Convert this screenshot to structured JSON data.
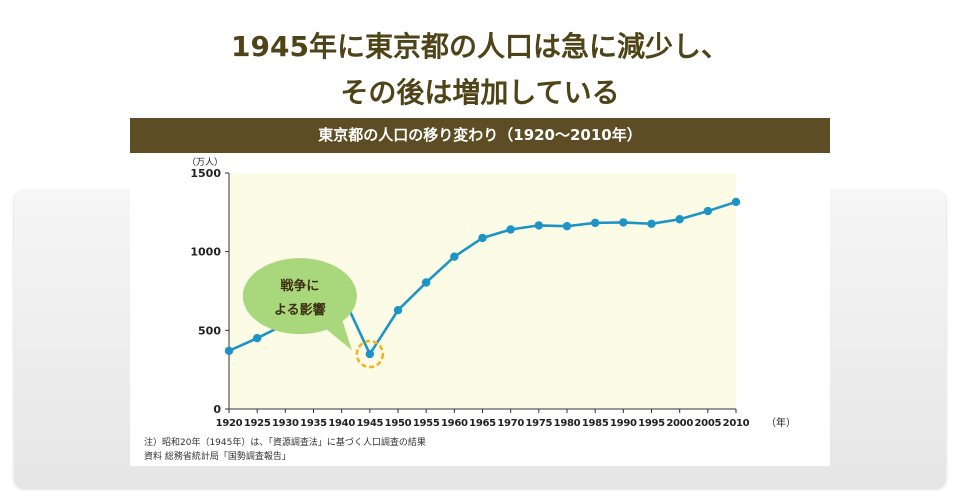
{
  "headline": {
    "line1": "1945年に東京都の人口は急に減少し、",
    "line2": "その後は増加している"
  },
  "chart_data": {
    "type": "line",
    "title": "東京都の人口の移り変わり（1920〜2010年）",
    "ylabel": "（万人）",
    "xlabel": "（年）",
    "x": [
      1920,
      1925,
      1930,
      1935,
      1940,
      1945,
      1950,
      1955,
      1960,
      1965,
      1970,
      1975,
      1980,
      1985,
      1990,
      1995,
      2000,
      2005,
      2010
    ],
    "x_tick_labels": [
      "1920",
      "1925",
      "1930",
      "1935",
      "1940",
      "1945",
      "1950",
      "1955",
      "1960",
      "1965",
      "1970",
      "1975",
      "1980",
      "1985",
      "1990",
      "1995",
      "2000",
      "2005",
      "2010"
    ],
    "y_ticks": [
      0,
      500,
      1000,
      1500
    ],
    "y_tick_labels": [
      "0",
      "500",
      "1000",
      "1500"
    ],
    "ylim": [
      0,
      1500
    ],
    "xlim": [
      1920,
      2010
    ],
    "series": [
      {
        "values": [
          370,
          450,
          540,
          640,
          735,
          349,
          628,
          804,
          968,
          1087,
          1141,
          1167,
          1162,
          1183,
          1186,
          1177,
          1206,
          1258,
          1316
        ],
        "color": "#1c95c6"
      }
    ],
    "annotations": [
      {
        "line1": "戦争に",
        "line2": "よる影響",
        "target_x": 1945,
        "fill": "#a9d77c",
        "highlight_color": "#f2b41c"
      }
    ],
    "background": "#fbfbe6",
    "grid": false,
    "notes": [
      "注）昭和20年（1945年）は、「資源調査法」に基づく人口調査の結果",
      "資料 総務省統計局「国勢調査報告」"
    ]
  }
}
